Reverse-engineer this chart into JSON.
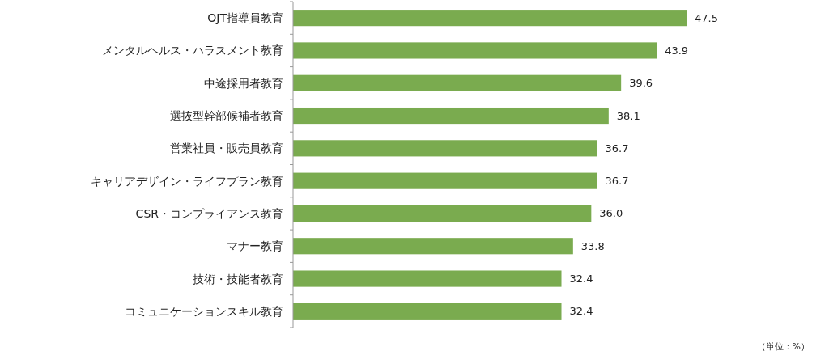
{
  "chart_data": {
    "type": "bar",
    "orientation": "horizontal",
    "categories": [
      "OJT指導員教育",
      "メンタルヘルス・ハラスメント教育",
      "中途採用者教育",
      "選抜型幹部候補者教育",
      "営業社員・販売員教育",
      "キャリアデザイン・ライフプラン教育",
      "CSR・コンプライアンス教育",
      "マナー教育",
      "技術・技能者教育",
      "コミュニケーションスキル教育"
    ],
    "values": [
      47.5,
      43.9,
      39.6,
      38.1,
      36.7,
      36.7,
      36.0,
      33.8,
      32.4,
      32.4
    ],
    "value_labels": [
      "47.5",
      "43.9",
      "39.6",
      "38.1",
      "36.7",
      "36.7",
      "36.0",
      "33.8",
      "32.4",
      "32.4"
    ],
    "color": "#7aab4f",
    "annotations": [
      "（単位：%）"
    ]
  }
}
